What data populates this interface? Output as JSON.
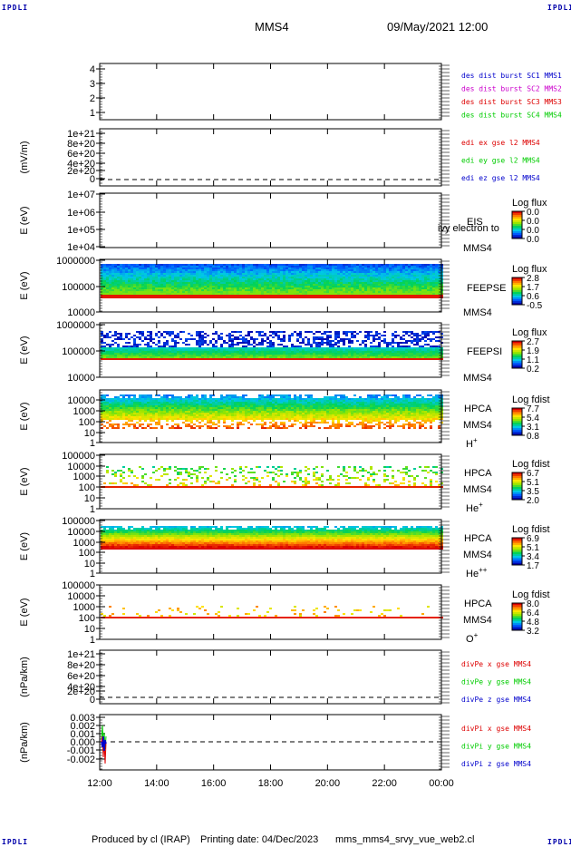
{
  "corners": {
    "tl": "IPDLI",
    "tr": "IPDLI",
    "bl": "IPDLI",
    "br": "IPDLI"
  },
  "header": {
    "spacecraft": "MMS4",
    "datetime": "09/May/2021 12:00"
  },
  "footer": {
    "producer": "Produced by cl (IRAP)",
    "printing": "Printing date: 04/Dec/2023",
    "filename": "mms_mms4_srvy_vue_web2.cl"
  },
  "colors": {
    "mms1": "#0000cc",
    "mms2": "#cc00cc",
    "mms3": "#dd0000",
    "mms4": "#00cc00"
  },
  "chart_data": {
    "type": "heatmap",
    "x_ticks": [
      "12:00",
      "14:00",
      "16:00",
      "18:00",
      "20:00",
      "22:00",
      "00:00"
    ],
    "panels": [
      {
        "id": "des-dist",
        "type": "line",
        "ylabel": "",
        "yticks": [
          "4",
          "3",
          "2",
          "1"
        ],
        "legend": [
          {
            "text": "des dist burst SC1 MMS1",
            "color": "#0000cc"
          },
          {
            "text": "des dist burst SC2 MMS2",
            "color": "#cc00cc"
          },
          {
            "text": "des dist burst SC3 MMS3",
            "color": "#dd0000"
          },
          {
            "text": "des dist burst SC4 MMS4",
            "color": "#00cc00"
          }
        ]
      },
      {
        "id": "edi-e",
        "type": "line",
        "ylabel": "(mV/m)",
        "yticks": [
          "1e+21",
          "8e+20",
          "6e+20",
          "4e+20",
          "2e+20",
          "0"
        ],
        "legend": [
          {
            "text": "edi ex gse l2 MMS4",
            "color": "#dd0000"
          },
          {
            "text": "edi ey gse l2 MMS4",
            "color": "#00cc00"
          },
          {
            "text": "edi ez gse l2 MMS4",
            "color": "#0000cc"
          }
        ]
      },
      {
        "id": "eis",
        "type": "heatmap",
        "ylabel": "E (eV)",
        "yticks": [
          "1e+07",
          "1e+06",
          "1e+05",
          "1e+04"
        ],
        "instrument": [
          "EIS",
          "MMS4"
        ],
        "overlay": "ivy electron to",
        "colorbar": {
          "title": "Log flux",
          "ticks": [
            "0.0",
            "0.0",
            "0.0",
            "0.0"
          ]
        }
      },
      {
        "id": "feepse",
        "type": "heatmap",
        "ylabel": "E (eV)",
        "yticks": [
          "1000000",
          "100000",
          "10000"
        ],
        "instrument": [
          "FEEPSE",
          "MMS4"
        ],
        "colorbar": {
          "title": "Log flux",
          "ticks": [
            "2.8",
            "1.7",
            "0.6",
            "-0.5"
          ]
        }
      },
      {
        "id": "feepsi",
        "type": "heatmap",
        "ylabel": "E (eV)",
        "yticks": [
          "1000000",
          "100000",
          "10000"
        ],
        "instrument": [
          "FEEPSI",
          "MMS4"
        ],
        "colorbar": {
          "title": "Log flux",
          "ticks": [
            "2.7",
            "1.9",
            "1.1",
            "0.2"
          ]
        }
      },
      {
        "id": "hpca-h",
        "type": "heatmap",
        "ylabel": "E (eV)",
        "yticks": [
          "10000",
          "1000",
          "100",
          "10",
          "1"
        ],
        "instrument": [
          "HPCA",
          "MMS4",
          "H+"
        ],
        "colorbar": {
          "title": "Log fdist",
          "ticks": [
            "7.7",
            "5.4",
            "3.1",
            "0.8"
          ]
        }
      },
      {
        "id": "hpca-he",
        "type": "heatmap",
        "ylabel": "E (eV)",
        "yticks": [
          "100000",
          "10000",
          "1000",
          "100",
          "10",
          "1"
        ],
        "instrument": [
          "HPCA",
          "MMS4",
          "He+"
        ],
        "colorbar": {
          "title": "Log fdist",
          "ticks": [
            "6.7",
            "5.1",
            "3.5",
            "2.0"
          ]
        }
      },
      {
        "id": "hpca-hepp",
        "type": "heatmap",
        "ylabel": "E (eV)",
        "yticks": [
          "100000",
          "10000",
          "1000",
          "100",
          "10",
          "1"
        ],
        "instrument": [
          "HPCA",
          "MMS4",
          "He++"
        ],
        "colorbar": {
          "title": "Log fdist",
          "ticks": [
            "6.9",
            "5.1",
            "3.4",
            "1.7"
          ]
        }
      },
      {
        "id": "hpca-o",
        "type": "heatmap",
        "ylabel": "E (eV)",
        "yticks": [
          "100000",
          "10000",
          "1000",
          "100",
          "10",
          "1"
        ],
        "instrument": [
          "HPCA",
          "MMS4",
          "O+"
        ],
        "colorbar": {
          "title": "Log fdist",
          "ticks": [
            "8.0",
            "6.4",
            "4.8",
            "3.2"
          ]
        }
      },
      {
        "id": "divpe",
        "type": "line",
        "ylabel": "(nPa/km)",
        "yticks": [
          "1e+21",
          "8e+20",
          "6e+20",
          "4e+20",
          "2e+20",
          "0"
        ],
        "legend": [
          {
            "text": "divPe x gse MMS4",
            "color": "#dd0000"
          },
          {
            "text": "divPe y gse MMS4",
            "color": "#00cc00"
          },
          {
            "text": "divPe z gse MMS4",
            "color": "#0000cc"
          }
        ]
      },
      {
        "id": "divpi",
        "type": "line",
        "ylabel": "(nPa/km)",
        "yticks": [
          "0.003",
          "0.002",
          "0.001",
          "0.000",
          "-0.001",
          "-0.002"
        ],
        "legend": [
          {
            "text": "divPi x gse MMS4",
            "color": "#dd0000"
          },
          {
            "text": "divPi y gse MMS4",
            "color": "#00cc00"
          },
          {
            "text": "divPi z gse MMS4",
            "color": "#0000cc"
          }
        ]
      }
    ]
  }
}
